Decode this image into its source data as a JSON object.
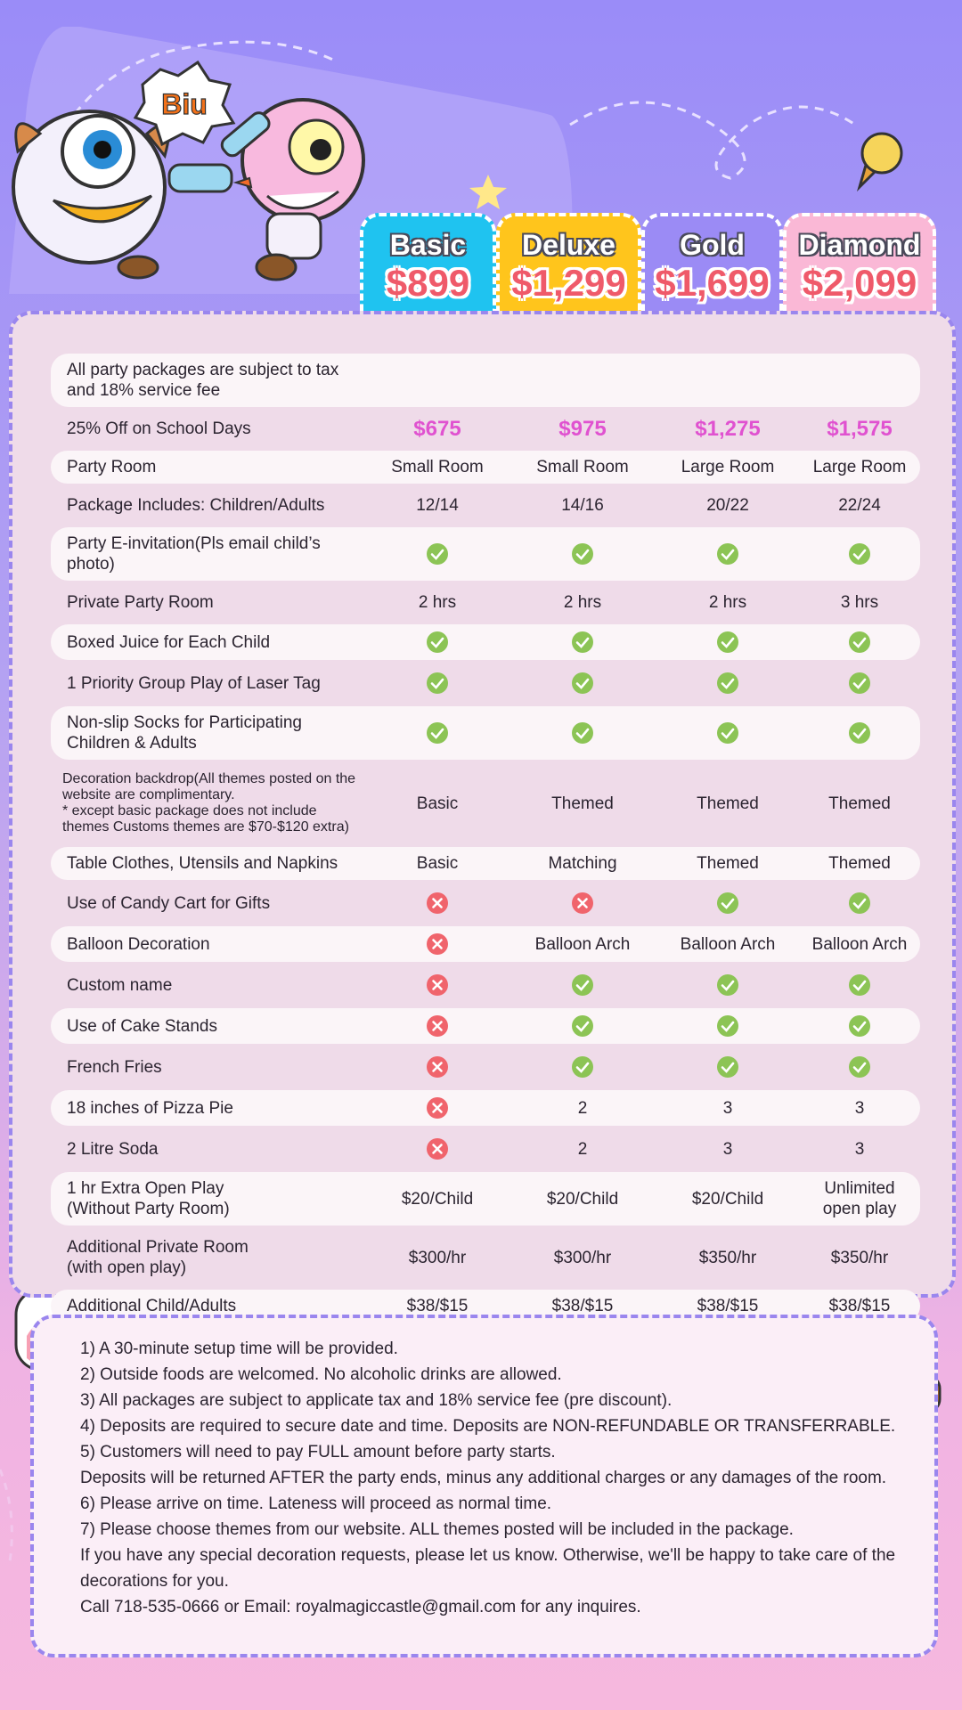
{
  "illustration": {
    "label": "Biu"
  },
  "packages": [
    {
      "name": "Basic",
      "price": "$899",
      "color": "#1fc3f0"
    },
    {
      "name": "Deluxe",
      "price": "$1,299",
      "color": "#ffc51c"
    },
    {
      "name": "Gold",
      "price": "$1,699",
      "color": "#9b8bf5"
    },
    {
      "name": "Diamond",
      "price": "$2,099",
      "color": "#fab8d6"
    }
  ],
  "notice": "All party packages are subject to tax and 18% service fee",
  "rows": [
    {
      "label": "25% Off on School Days",
      "cells": [
        "$675",
        "$975",
        "$1,275",
        "$1,575"
      ],
      "color": "#e052d0"
    },
    {
      "label": "Party Room",
      "cells": [
        "Small Room",
        "Small Room",
        "Large Room",
        "Large Room"
      ]
    },
    {
      "label": "Package Includes: Children/Adults",
      "cells": [
        "12/14",
        "14/16",
        "20/22",
        "22/24"
      ]
    },
    {
      "label": "Party E-invitation(Pls email child’s photo)",
      "cells": [
        true,
        true,
        true,
        true
      ]
    },
    {
      "label": "Private Party Room",
      "cells": [
        "2 hrs",
        "2 hrs",
        "2 hrs",
        "3 hrs"
      ]
    },
    {
      "label": "Boxed Juice for Each Child",
      "cells": [
        true,
        true,
        true,
        true
      ]
    },
    {
      "label": "1 Priority Group Play of Laser Tag",
      "cells": [
        true,
        true,
        true,
        true
      ]
    },
    {
      "label": "Non-slip Socks for Participating\nChildren & Adults",
      "cells": [
        true,
        true,
        true,
        true
      ]
    },
    {
      "label": "Decoration backdrop(All themes posted on the website are complimentary.\n* except basic package does not include themes Customs themes are $70-$120 extra)",
      "cells": [
        "Basic",
        "Themed",
        "Themed",
        "Themed"
      ]
    },
    {
      "label": "Table Clothes, Utensils and Napkins",
      "cells": [
        "Basic",
        "Matching",
        "Themed",
        "Themed"
      ]
    },
    {
      "label": "Use of Candy Cart for Gifts",
      "cells": [
        false,
        false,
        true,
        true
      ]
    },
    {
      "label": "Balloon Decoration",
      "cells": [
        false,
        "Balloon Arch",
        "Balloon Arch",
        "Balloon Arch"
      ]
    },
    {
      "label": "Custom name",
      "cells": [
        false,
        true,
        true,
        true
      ]
    },
    {
      "label": "Use of Cake Stands",
      "cells": [
        false,
        true,
        true,
        true
      ]
    },
    {
      "label": "French Fries",
      "cells": [
        false,
        true,
        true,
        true
      ]
    },
    {
      "label": "18 inches of Pizza Pie",
      "cells": [
        false,
        "2",
        "3",
        "3"
      ]
    },
    {
      "label": "2 Litre Soda",
      "cells": [
        false,
        "2",
        "3",
        "3"
      ]
    },
    {
      "label": "1 hr Extra Open Play\n(Without Party Room)",
      "cells": [
        "$20/Child",
        "$20/Child",
        "$20/Child",
        "Unlimited\nopen play"
      ]
    },
    {
      "label": "Additional Private Room\n(with open play)",
      "cells": [
        "$300/hr",
        "$300/hr",
        "$350/hr",
        "$350/hr"
      ]
    },
    {
      "label": "Additional Child/Adults",
      "cells": [
        "$38/$15",
        "$38/$15",
        "$38/$15",
        "$38/$15"
      ]
    }
  ],
  "notes": [
    "1) A 30-minute setup time will be provided.",
    "2) Outside foods are welcomed. No alcoholic drinks are allowed.",
    "3) All packages are subject to applicate tax and 18% service fee (pre discount).",
    "4) Deposits are required to secure date and time. Deposits are NON-REFUNDABLE OR TRANSFERRABLE.",
    "5) Customers will need to pay FULL amount before party starts.",
    "Deposits will be returned AFTER the party ends, minus any additional charges or any damages of the room.",
    "6) Please arrive on time. Lateness will proceed as normal time.",
    "7) Please choose themes from our website. ALL themes posted will be included in the package.",
    "If you have any special decoration requests, please let us know. Otherwise, we'll be happy to take care of the decorations for you.",
    "Call 718-535-0666 or Email: royalmagiccastle@gmail.com for any inquires."
  ]
}
